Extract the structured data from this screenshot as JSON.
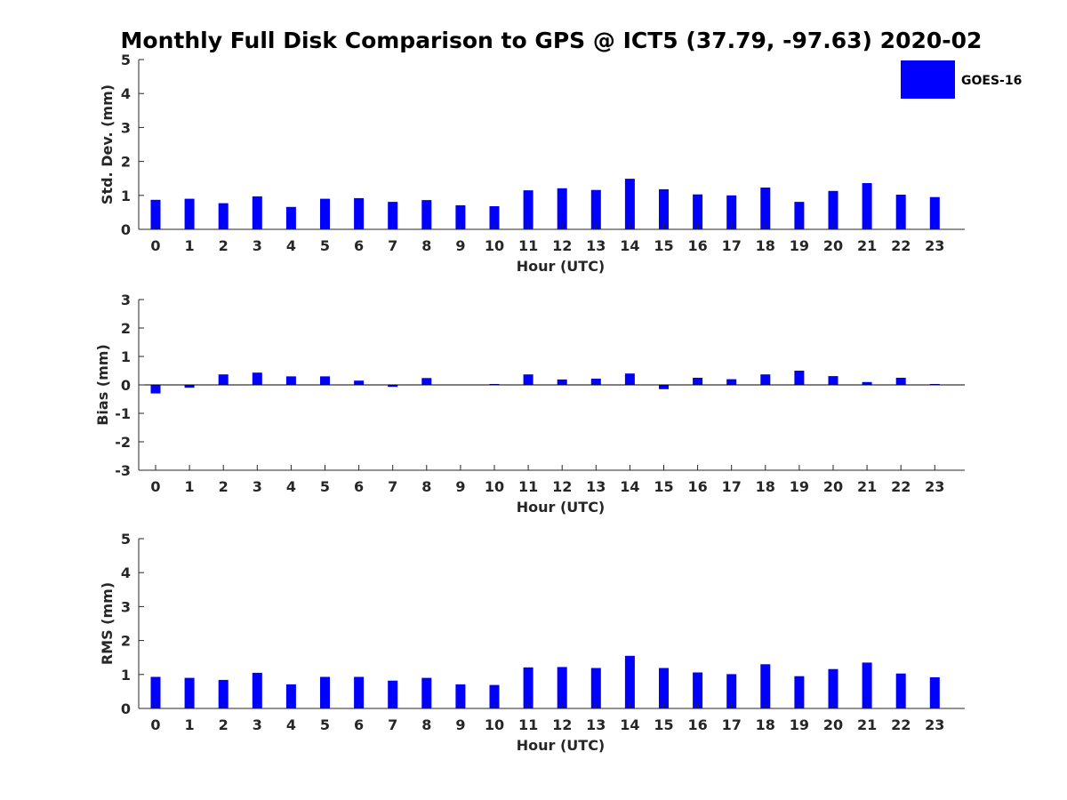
{
  "title": "Monthly Full Disk Comparison to GPS @ ICT5 (37.79, -97.63) 2020-02",
  "legend": {
    "label": "GOES-16",
    "color": "#0000ff"
  },
  "chart_data": [
    {
      "type": "bar",
      "categories": [
        "0",
        "1",
        "2",
        "3",
        "4",
        "5",
        "6",
        "7",
        "8",
        "9",
        "10",
        "11",
        "12",
        "13",
        "14",
        "15",
        "16",
        "17",
        "18",
        "19",
        "20",
        "21",
        "22",
        "23"
      ],
      "series": [
        {
          "name": "GOES-16",
          "values": [
            0.87,
            0.9,
            0.77,
            0.97,
            0.66,
            0.9,
            0.92,
            0.81,
            0.86,
            0.71,
            0.68,
            1.15,
            1.21,
            1.16,
            1.49,
            1.18,
            1.03,
            1.0,
            1.23,
            0.81,
            1.13,
            1.36,
            1.02,
            0.95
          ]
        }
      ],
      "xlabel": "Hour (UTC)",
      "ylabel": "Std. Dev. (mm)",
      "ylim": [
        0,
        5
      ],
      "yticks": [
        "0",
        "1",
        "2",
        "3",
        "4",
        "5"
      ],
      "color": "#0000ff",
      "legend": "top-right"
    },
    {
      "type": "bar",
      "categories": [
        "0",
        "1",
        "2",
        "3",
        "4",
        "5",
        "6",
        "7",
        "8",
        "9",
        "10",
        "11",
        "12",
        "13",
        "14",
        "15",
        "16",
        "17",
        "18",
        "19",
        "20",
        "21",
        "22",
        "23"
      ],
      "series": [
        {
          "name": "GOES-16",
          "values": [
            -0.3,
            -0.1,
            0.37,
            0.43,
            0.3,
            0.3,
            0.15,
            -0.07,
            0.24,
            0.0,
            0.03,
            0.37,
            0.19,
            0.22,
            0.4,
            -0.15,
            0.25,
            0.2,
            0.37,
            0.5,
            0.31,
            0.1,
            0.25,
            0.03
          ]
        }
      ],
      "xlabel": "Hour (UTC)",
      "ylabel": "Bias (mm)",
      "ylim": [
        -3,
        3
      ],
      "yticks": [
        "-3",
        "-2",
        "-1",
        "0",
        "1",
        "2",
        "3"
      ],
      "color": "#0000ff"
    },
    {
      "type": "bar",
      "categories": [
        "0",
        "1",
        "2",
        "3",
        "4",
        "5",
        "6",
        "7",
        "8",
        "9",
        "10",
        "11",
        "12",
        "13",
        "14",
        "15",
        "16",
        "17",
        "18",
        "19",
        "20",
        "21",
        "22",
        "23"
      ],
      "series": [
        {
          "name": "GOES-16",
          "values": [
            0.93,
            0.9,
            0.84,
            1.05,
            0.71,
            0.93,
            0.93,
            0.82,
            0.9,
            0.71,
            0.69,
            1.21,
            1.22,
            1.19,
            1.55,
            1.19,
            1.06,
            1.01,
            1.3,
            0.95,
            1.16,
            1.35,
            1.03,
            0.92
          ]
        }
      ],
      "xlabel": "Hour (UTC)",
      "ylabel": "RMS (mm)",
      "ylim": [
        0,
        5
      ],
      "yticks": [
        "0",
        "1",
        "2",
        "3",
        "4",
        "5"
      ],
      "color": "#0000ff"
    }
  ]
}
